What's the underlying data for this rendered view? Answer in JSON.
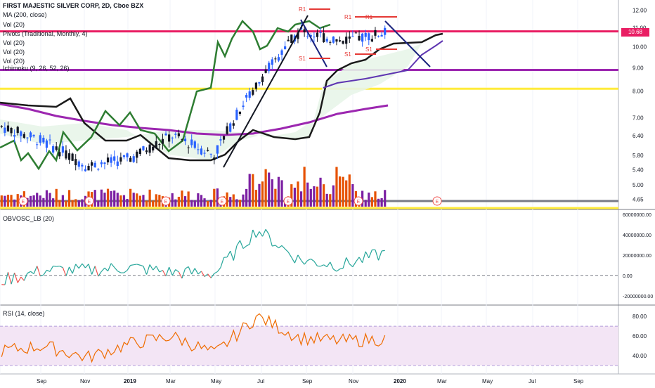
{
  "header": {
    "title": "FIRST MAJESTIC SILVER CORP, 2D, Cboe BZX",
    "indicators": [
      "MA (200, close)",
      "Vol (20)",
      "Pivots (Traditional, Monthly, 4)",
      "Vol (20)",
      "Vol (20)",
      "Vol (20)",
      "Ichimoku (9, 26, 52, 26)"
    ]
  },
  "price_pane": {
    "last_price": "10.68",
    "y_ticks": [
      "12.00",
      "11.00",
      "10.00",
      "9.00",
      "8.00",
      "7.00",
      "6.40",
      "5.80",
      "5.40",
      "5.00",
      "4.65"
    ],
    "pivot_labels": [
      "R1",
      "R1",
      "R1",
      "S1",
      "S1",
      "S1"
    ],
    "earnings_marker": "E",
    "horizontal_lines": [
      {
        "level": 10.8,
        "color": "#e91e63"
      },
      {
        "level": 8.9,
        "color": "#9c27b0"
      },
      {
        "level": 8.1,
        "color": "#ffeb3b"
      }
    ]
  },
  "obv_pane": {
    "title": "OBVOSC_LB (20)",
    "y_ticks": [
      "60000000.00",
      "40000000.00",
      "20000000.00",
      "0.00",
      "-20000000.00"
    ]
  },
  "rsi_pane": {
    "title": "RSI (14, close)",
    "y_ticks": [
      "80.00",
      "60.00",
      "40.00"
    ]
  },
  "x_axis": {
    "labels": [
      "Sep",
      "Nov",
      "2019",
      "Mar",
      "May",
      "Jul",
      "Sep",
      "Nov",
      "2020",
      "Mar",
      "May",
      "Jul",
      "Sep"
    ]
  },
  "colors": {
    "up": "#26a69a",
    "down": "#ef5350",
    "candle_up": "#2962ff",
    "candle_down": "#131722",
    "ma": "#9c27b0",
    "lagging": "#2e7d32",
    "cloud_line": "#1a1a1a",
    "vol_up": "#7b1fa2",
    "vol_down": "#e65100"
  },
  "chart_data": [
    {
      "type": "line",
      "title": "FIRST MAJESTIC SILVER CORP, 2D, Cboe BZX",
      "xlabel": "",
      "ylabel": "",
      "ylim": [
        4.5,
        12.2
      ],
      "y_scale": "log",
      "x": [
        "Jul",
        "Sep",
        "Nov",
        "2019",
        "Mar",
        "May",
        "Jul",
        "Sep",
        "Nov",
        "2020"
      ],
      "series": [
        {
          "name": "close",
          "values": [
            6.7,
            6.2,
            5.5,
            5.7,
            6.4,
            5.8,
            8.3,
            10.8,
            10.3,
            10.7
          ]
        },
        {
          "name": "MA (200, close)",
          "values": [
            7.3,
            7.0,
            6.8,
            6.6,
            6.4,
            6.3,
            6.4,
            6.8,
            7.2,
            7.3
          ]
        }
      ]
    },
    {
      "type": "line",
      "title": "OBVOSC_LB (20)",
      "ylim": [
        -25000000,
        62000000
      ],
      "x": [
        "Jul",
        "Sep",
        "Nov",
        "2019",
        "Mar",
        "May",
        "Jul",
        "Sep",
        "Nov",
        "2020"
      ],
      "series": [
        {
          "values": [
            -5000000,
            5000000,
            5000000,
            8000000,
            3000000,
            2000000,
            45000000,
            15000000,
            10000000,
            22000000
          ]
        }
      ]
    },
    {
      "type": "line",
      "title": "RSI (14, close)",
      "ylim": [
        25,
        88
      ],
      "x": [
        "Jul",
        "Sep",
        "Nov",
        "2019",
        "Mar",
        "May",
        "Jul",
        "Sep",
        "Nov",
        "2020"
      ],
      "series": [
        {
          "values": [
            45,
            50,
            38,
            52,
            60,
            42,
            80,
            58,
            55,
            57
          ]
        }
      ]
    }
  ]
}
